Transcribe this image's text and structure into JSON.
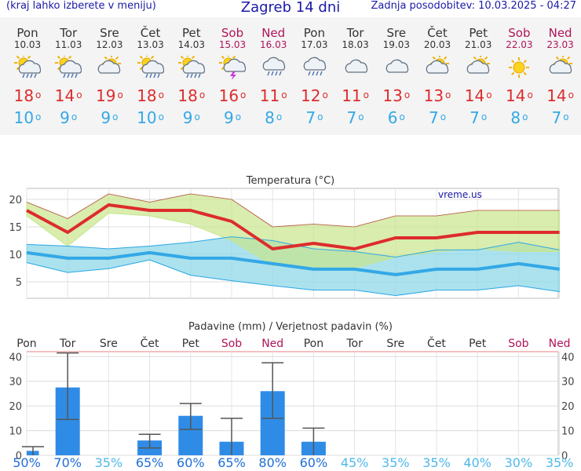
{
  "header": {
    "hint": "(kraj lahko izberete v meniju)",
    "title": "Zagreb 14 dni",
    "updated": "Zadnja posodobitev: 10.03.2025 - 04:27"
  },
  "colors": {
    "max_temp": "#dd2c2c",
    "min_temp": "#33a8e6",
    "weekend": "#b0145a",
    "precip_bar": "#2f8ce6",
    "max_band": "#c8e68c",
    "min_band": "#8fd8e8",
    "overlap_band": "#66cc88"
  },
  "forecast": [
    {
      "day": "Pon",
      "date": "10.03",
      "icon": "sun-cloud-rain-icon",
      "max": "18",
      "min": "10",
      "weekend": false
    },
    {
      "day": "Tor",
      "date": "11.03",
      "icon": "sun-cloud-rain-icon",
      "max": "14",
      "min": "9",
      "weekend": false
    },
    {
      "day": "Sre",
      "date": "12.03",
      "icon": "sun-cloud-icon",
      "max": "19",
      "min": "9",
      "weekend": false
    },
    {
      "day": "Čet",
      "date": "13.03",
      "icon": "sun-cloud-rain-icon",
      "max": "18",
      "min": "10",
      "weekend": false
    },
    {
      "day": "Pet",
      "date": "14.03",
      "icon": "sun-cloud-rain-icon",
      "max": "18",
      "min": "9",
      "weekend": false
    },
    {
      "day": "Sob",
      "date": "15.03",
      "icon": "sun-cloud-thunder-icon",
      "max": "16",
      "min": "9",
      "weekend": true
    },
    {
      "day": "Ned",
      "date": "16.03",
      "icon": "cloud-rain-icon",
      "max": "11",
      "min": "8",
      "weekend": true
    },
    {
      "day": "Pon",
      "date": "17.03",
      "icon": "cloud-rain-icon",
      "max": "12",
      "min": "7",
      "weekend": false
    },
    {
      "day": "Tor",
      "date": "18.03",
      "icon": "cloud-icon",
      "max": "11",
      "min": "7",
      "weekend": false
    },
    {
      "day": "Sre",
      "date": "19.03",
      "icon": "cloud-icon",
      "max": "13",
      "min": "6",
      "weekend": false
    },
    {
      "day": "Čet",
      "date": "20.03",
      "icon": "sun-cloud-icon",
      "max": "13",
      "min": "7",
      "weekend": false
    },
    {
      "day": "Pet",
      "date": "21.03",
      "icon": "sun-cloud-icon",
      "max": "14",
      "min": "7",
      "weekend": false
    },
    {
      "day": "Sob",
      "date": "22.03",
      "icon": "sun-icon",
      "max": "14",
      "min": "8",
      "weekend": true
    },
    {
      "day": "Ned",
      "date": "23.03",
      "icon": "sun-cloud-icon",
      "max": "14",
      "min": "7",
      "weekend": true
    }
  ],
  "chart_data": [
    {
      "type": "line",
      "title": "Temperatura (°C)",
      "watermark": "vreme.us",
      "ylim": [
        2,
        22
      ],
      "yticks": [
        "5",
        "10",
        "15",
        "20"
      ],
      "x": [
        "Pon",
        "Tor",
        "Sre",
        "Čet",
        "Pet",
        "Sob",
        "Ned",
        "Pon",
        "Tor",
        "Sre",
        "Čet",
        "Pet",
        "Sob",
        "Ned"
      ],
      "grid": true,
      "series": [
        {
          "role": "max",
          "values": [
            18,
            14,
            19,
            18,
            18,
            16,
            11,
            12,
            11,
            13,
            13,
            14,
            14,
            14
          ]
        },
        {
          "role": "max_upper",
          "values": [
            19.5,
            16.5,
            21,
            19.5,
            21,
            20,
            15,
            15.5,
            15,
            17,
            17,
            18,
            18,
            18
          ]
        },
        {
          "role": "max_lower",
          "values": [
            17,
            11.5,
            17.5,
            17,
            15.5,
            12.5,
            8,
            7.5,
            7.5,
            9.5,
            10.5,
            11,
            10.5,
            10.5
          ]
        },
        {
          "role": "min",
          "values": [
            10.3,
            9.3,
            9.3,
            10.3,
            9.3,
            9.3,
            8.3,
            7.3,
            7.3,
            6.3,
            7.3,
            7.3,
            8.3,
            7.3
          ]
        },
        {
          "role": "min_upper",
          "values": [
            11.8,
            11.5,
            11,
            11.5,
            12.2,
            13.2,
            12.5,
            11,
            10.5,
            9.5,
            10.8,
            10.8,
            12.2,
            10.8
          ]
        },
        {
          "role": "min_lower",
          "values": [
            8.5,
            6.7,
            7.4,
            9,
            6.2,
            5.2,
            4.3,
            3.5,
            3.5,
            2.5,
            3.5,
            3.5,
            4.3,
            3.2
          ]
        }
      ]
    },
    {
      "type": "bar",
      "title": "Padavine (mm) / Verjetnost padavin (%)",
      "categories": [
        "Pon",
        "Tor",
        "Sre",
        "Čet",
        "Pet",
        "Sob",
        "Ned",
        "Pon",
        "Tor",
        "Sre",
        "Čet",
        "Pet",
        "Sob",
        "Ned"
      ],
      "ylim": [
        0,
        42
      ],
      "yticks": [
        "0",
        "10",
        "20",
        "30",
        "40"
      ],
      "values": [
        1.8,
        27.5,
        0,
        6,
        16,
        5.5,
        26,
        5.5,
        0,
        0,
        0,
        0,
        0,
        0
      ],
      "error_low": [
        0,
        14.5,
        0,
        3,
        10.5,
        0,
        15,
        0,
        0,
        0,
        0,
        0,
        0,
        0
      ],
      "error_high": [
        3.5,
        41.5,
        0,
        8.5,
        21,
        15,
        37.5,
        11,
        0,
        0,
        0,
        0,
        0,
        0
      ],
      "probability": [
        "50%",
        "70%",
        "35%",
        "65%",
        "60%",
        "65%",
        "80%",
        "60%",
        "45%",
        "35%",
        "35%",
        "40%",
        "30%",
        "35%"
      ]
    }
  ]
}
